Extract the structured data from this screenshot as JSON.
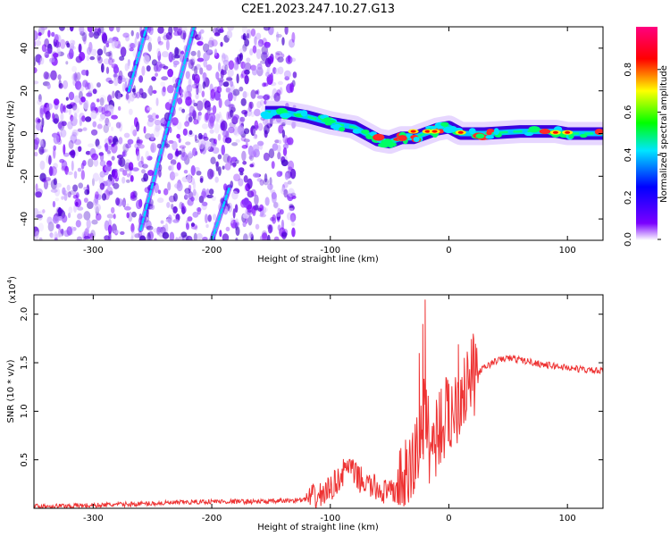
{
  "figure_title": "C2E1.2023.247.10.27.G13",
  "chart_data": [
    {
      "type": "heatmap",
      "xlabel": "Height of straight line (km)",
      "ylabel": "Frequency (Hz)",
      "xlim": [
        -350,
        130
      ],
      "ylim": [
        -50,
        50
      ],
      "x_ticks": [
        -300,
        -200,
        -100,
        0,
        100
      ],
      "y_ticks": [
        -40,
        -20,
        0,
        20,
        40
      ],
      "colorbar": {
        "label": "Normalized spectral amplitude",
        "range": [
          0,
          1
        ],
        "ticks": [
          "0.0",
          "0.2",
          "0.4",
          "0.6",
          "0.8"
        ],
        "colors": [
          "#ffffff",
          "#7a00ff",
          "#0000ff",
          "#00e5ff",
          "#00ff00",
          "#ffff00",
          "#ff0000",
          "#ff007f"
        ]
      },
      "ridge": {
        "x": [
          -155,
          -140,
          -120,
          -100,
          -80,
          -60,
          -50,
          -40,
          -30,
          -20,
          -10,
          0,
          10,
          30,
          60,
          90,
          100,
          130
        ],
        "y": [
          10,
          10,
          8,
          5,
          3,
          -3,
          -4,
          -2,
          -2,
          0,
          2,
          3,
          0,
          0,
          1,
          1,
          0,
          0
        ]
      },
      "diagonal_streaks": [
        {
          "x0": -270,
          "y0": 20,
          "x1": -255,
          "y1": 50
        },
        {
          "x0": -260,
          "y0": -45,
          "x1": -215,
          "y1": 50
        },
        {
          "x0": -200,
          "y0": -50,
          "x1": -185,
          "y1": -25
        }
      ]
    },
    {
      "type": "line",
      "xlabel": "Height of straight line (km)",
      "ylabel": "SNR (10 * v/v)",
      "y_multiplier": "(x10",
      "y_multiplier_exp": "4",
      "y_multiplier_close": ")",
      "xlim": [
        -350,
        130
      ],
      "ylim": [
        0,
        22000
      ],
      "x_ticks": [
        -300,
        -200,
        -100,
        0,
        100
      ],
      "y_ticks": [
        "0.5",
        "1.0",
        "1.5",
        "2.0"
      ],
      "color": "#ee3333",
      "x": [
        -350,
        -300,
        -250,
        -200,
        -150,
        -120,
        -110,
        -100,
        -90,
        -85,
        -80,
        -70,
        -60,
        -50,
        -40,
        -35,
        -30,
        -25,
        -20,
        -15,
        -10,
        -5,
        0,
        5,
        10,
        20,
        30,
        40,
        50,
        60,
        80,
        100,
        120,
        130
      ],
      "values": [
        200,
        300,
        500,
        700,
        700,
        900,
        1200,
        2000,
        3500,
        4500,
        3500,
        2500,
        2000,
        1500,
        2000,
        3000,
        4500,
        7000,
        9500,
        6000,
        8000,
        9000,
        9500,
        10500,
        12000,
        13500,
        14500,
        15200,
        15500,
        15300,
        14800,
        14500,
        14200,
        14100
      ]
    }
  ]
}
